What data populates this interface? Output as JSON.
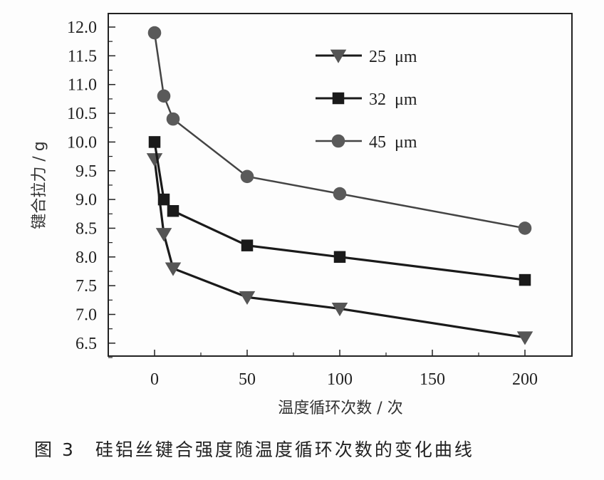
{
  "chart_data": {
    "type": "line",
    "title": "",
    "caption": {
      "figure_label": "图 3",
      "text": "硅铝丝键合强度随温度循环次数的变化曲线"
    },
    "xlabel": "温度循环次数 / 次",
    "ylabel": "键合拉力 / g",
    "xlim": [
      -25,
      225
    ],
    "ylim": [
      6.3,
      12.25
    ],
    "x_ticks": [
      0,
      50,
      100,
      150,
      200
    ],
    "x_tick_labels": [
      "0",
      "50",
      "100",
      "150",
      "200"
    ],
    "y_ticks": [
      6.5,
      7.0,
      7.5,
      8.0,
      8.5,
      9.0,
      9.5,
      10.0,
      10.5,
      11.0,
      11.5,
      12.0
    ],
    "y_tick_labels": [
      "6.5",
      "7.0",
      "7.5",
      "8.0",
      "8.5",
      "9.0",
      "9.5",
      "10.0",
      "10.5",
      "11.0",
      "11.5",
      "12.0"
    ],
    "grid": false,
    "legend_position": "upper right",
    "x": [
      0,
      5,
      10,
      50,
      100,
      200
    ],
    "series": [
      {
        "name": "25 μm",
        "marker": "triangle-down",
        "color": "#555555",
        "line_color": "#1a1a1a",
        "values": [
          9.7,
          8.4,
          7.8,
          7.3,
          7.1,
          6.6
        ]
      },
      {
        "name": "32 μm",
        "marker": "square",
        "color": "#1a1a1a",
        "line_color": "#1a1a1a",
        "values": [
          10.0,
          9.0,
          8.8,
          8.2,
          8.0,
          7.6
        ]
      },
      {
        "name": "45 μm",
        "marker": "circle",
        "color": "#5a5a5a",
        "line_color": "#444444",
        "values": [
          11.9,
          10.8,
          10.4,
          9.4,
          9.1,
          8.5
        ]
      }
    ]
  }
}
